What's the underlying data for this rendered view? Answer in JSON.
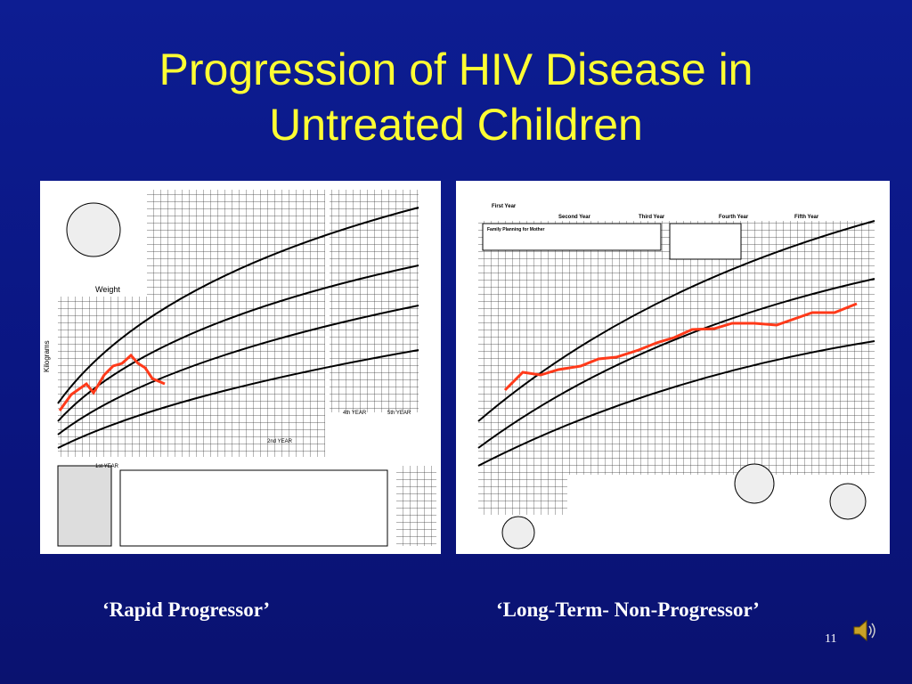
{
  "slide": {
    "title": [
      "Progression of HIV Disease in",
      "Untreated Children"
    ],
    "left_chart": {
      "labels": [
        "Weight",
        "Kilograms",
        "4th YEAR",
        "5th YEAR",
        "2nd YEAR",
        "1st YEAR"
      ]
    },
    "right_chart": {
      "labels": [
        "First Year",
        "Second Year",
        "Third Year",
        "Fourth Year",
        "Fifth Year",
        "Family Planning for Mother"
      ]
    },
    "captions": [
      "‘Rapid Progressor’",
      "‘Long-Term- Non-Progressor’"
    ],
    "slide_number": "11"
  }
}
